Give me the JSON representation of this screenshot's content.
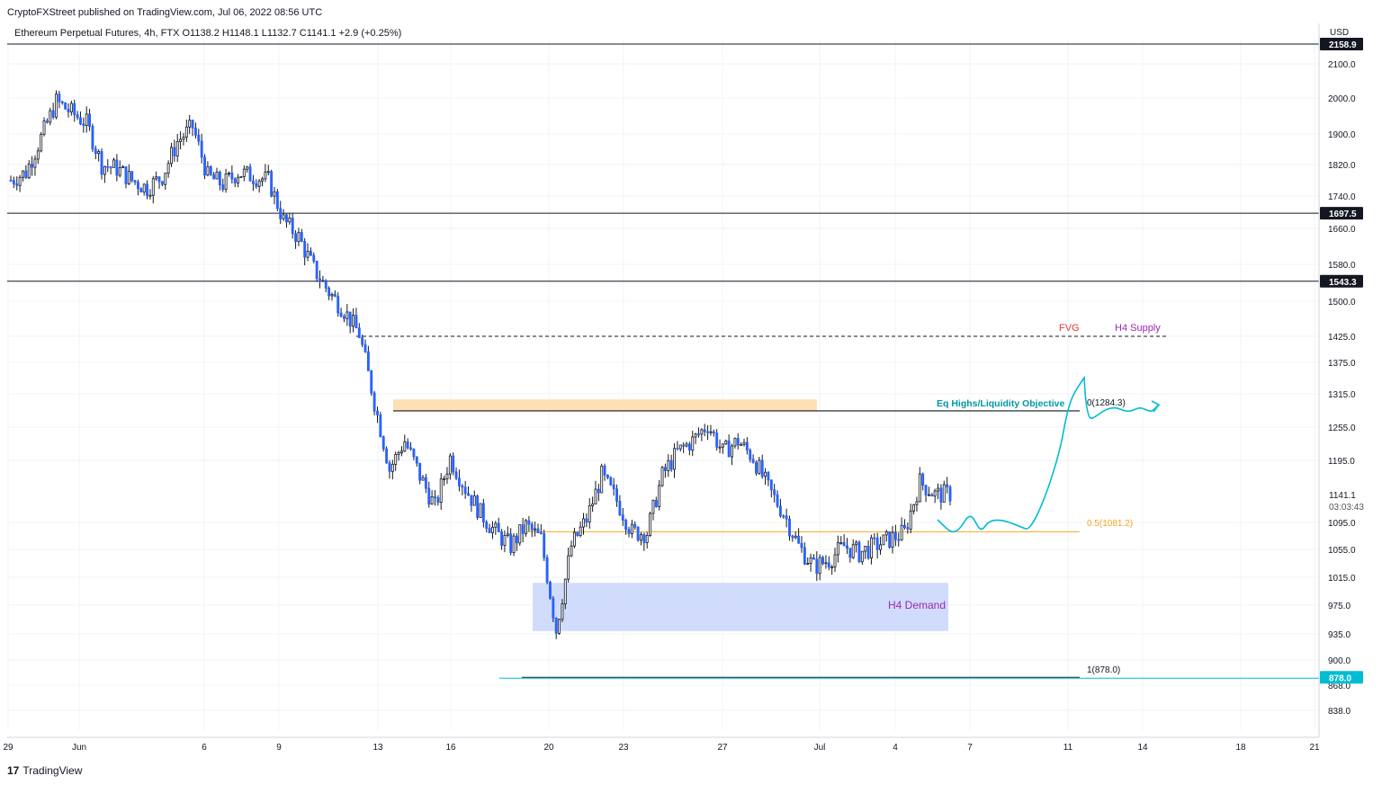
{
  "header": {
    "publisher": "CryptoFXStreet published on TradingView.com, Jul 06, 2022 08:56 UTC",
    "legend": "Ethereum Perpetual Futures, 4h, FTX  O1138.2  H1148.1  L1132.7  C1141.1  +2.9 (+0.25%)",
    "currency": "USD"
  },
  "footer": {
    "logo_mark": "17",
    "brand": "TradingView"
  },
  "chart_data": {
    "type": "candlestick",
    "symbol": "Ethereum Perpetual Futures",
    "timeframe": "4h",
    "exchange": "FTX",
    "last_price": 1141.1,
    "countdown": "03:03:43",
    "y_ticks": [
      838.0,
      868.0,
      900.0,
      935.0,
      975.0,
      1015.0,
      1055.0,
      1095.0,
      1195.0,
      1255.0,
      1315.0,
      1375.0,
      1425.0,
      1500.0,
      1580.0,
      1660.0,
      1740.0,
      1820.0,
      1900.0,
      2000.0,
      2100.0
    ],
    "x_ticks": [
      "29",
      "Jun",
      "6",
      "9",
      "13",
      "16",
      "20",
      "23",
      "27",
      "Jul",
      "4",
      "7",
      "11",
      "14",
      "18",
      "21"
    ],
    "price_labels": [
      {
        "value": "2158.9",
        "style": "dark"
      },
      {
        "value": "1697.5",
        "style": "dark"
      },
      {
        "value": "1543.3",
        "style": "dark"
      },
      {
        "value": "878.0",
        "style": "cyan"
      }
    ],
    "horizontal_levels": [
      2158.9,
      1697.5,
      1543.3,
      1425.0,
      1284.3,
      1081.2,
      878.0
    ],
    "annotations": {
      "fvg": "FVG",
      "h4_supply": "H4 Supply",
      "eq_highs": "Eq Highs/Liquidity Objective",
      "fib_0": "0(1284.3)",
      "fib_05": "0.5(1081.2)",
      "fib_1": "1(878.0)",
      "h4_demand": "H4 Demand"
    },
    "zones": [
      {
        "name": "supply-fvg-zone",
        "from": 1284.3,
        "to": 1305.0
      },
      {
        "name": "h4-demand-zone",
        "from": 939.0,
        "to": 1007.0
      }
    ],
    "colors": {
      "up": "#ffffff",
      "down": "#2962ff",
      "cyan": "#00bcd4",
      "orange": "#f5a623",
      "purple": "#9c27b0",
      "red": "#e53935",
      "zone_orange": "#ffe0b2",
      "zone_blue": "#c9d6fb"
    },
    "close_path": [
      1780,
      1800,
      1890,
      1990,
      1960,
      1930,
      1820,
      1810,
      1780,
      1760,
      1790,
      1880,
      1920,
      1790,
      1770,
      1800,
      1790,
      1780,
      1680,
      1640,
      1570,
      1520,
      1480,
      1430,
      1300,
      1180,
      1230,
      1170,
      1120,
      1200,
      1150,
      1110,
      1080,
      1060,
      1090,
      1070,
      940,
      1060,
      1100,
      1170,
      1130,
      1080,
      1080,
      1170,
      1210,
      1230,
      1260,
      1210,
      1230,
      1200,
      1150,
      1110,
      1060,
      1030,
      1040,
      1060,
      1050,
      1060,
      1070,
      1080,
      1160,
      1140,
      1141
    ]
  }
}
